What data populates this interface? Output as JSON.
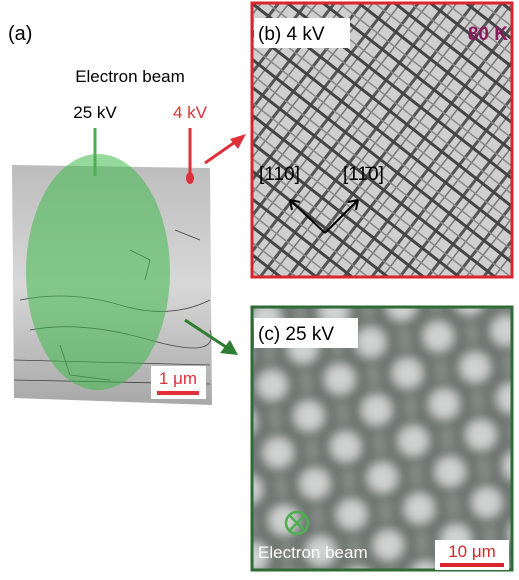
{
  "panel_a": {
    "label": "(a)",
    "beam_label": "Electron beam",
    "voltage_high": "25 kV",
    "voltage_low": "4 kV",
    "scale_bar": "1 μm"
  },
  "panel_b": {
    "label": "(b) 4 kV",
    "temperature": "80 K",
    "direction_1": "[110]",
    "direction_2": "[11̄0]"
  },
  "panel_c": {
    "label": "(c) 25 kV",
    "beam_label": "Electron beam",
    "scale_bar": "10 μm"
  }
}
